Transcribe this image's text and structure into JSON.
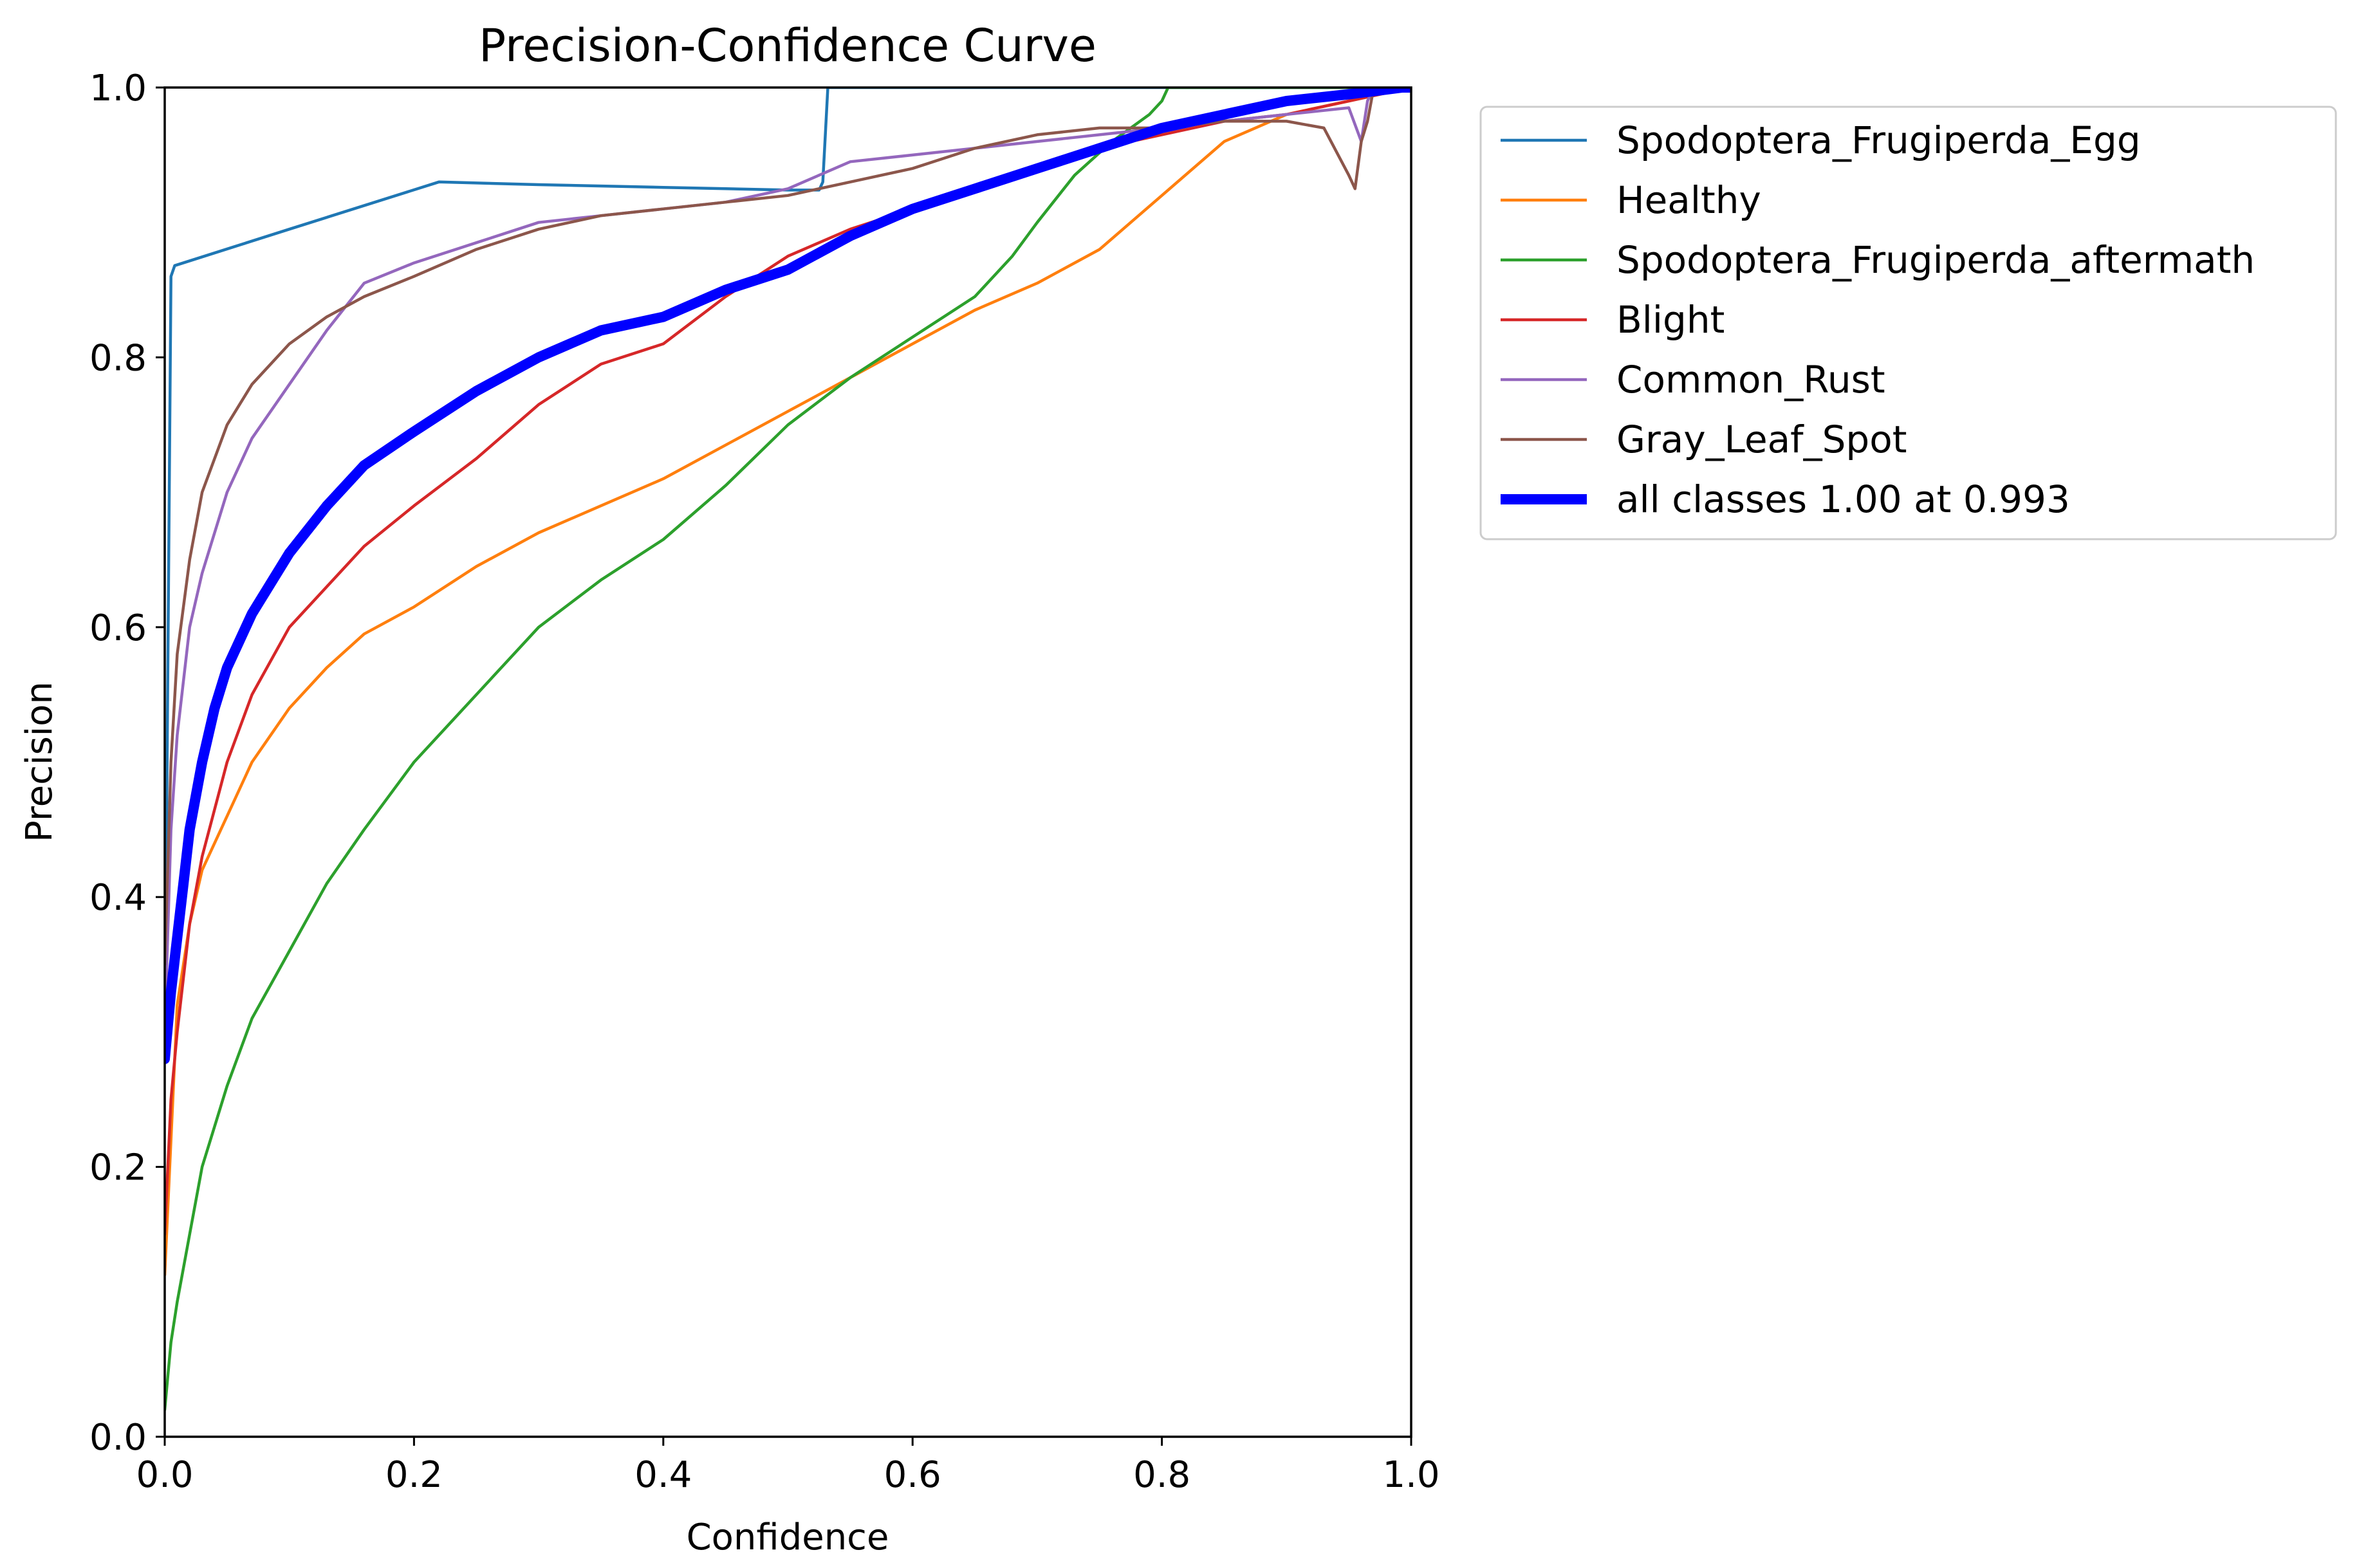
{
  "chart_data": {
    "type": "line",
    "title": "Precision-Confidence Curve",
    "xlabel": "Confidence",
    "ylabel": "Precision",
    "xlim": [
      0.0,
      1.0
    ],
    "ylim": [
      0.0,
      1.0
    ],
    "xticks": [
      0.0,
      0.2,
      0.4,
      0.6,
      0.8,
      1.0
    ],
    "yticks": [
      0.0,
      0.2,
      0.4,
      0.6,
      0.8,
      1.0
    ],
    "xtick_labels": [
      "0.0",
      "0.2",
      "0.4",
      "0.6",
      "0.8",
      "1.0"
    ],
    "ytick_labels": [
      "0.0",
      "0.2",
      "0.4",
      "0.6",
      "0.8",
      "1.0"
    ],
    "grid": false,
    "legend_position": "outside-top-right",
    "series": [
      {
        "name": "Spodoptera_Frugiperda_Egg",
        "color": "#1f77b4",
        "emphasis": "normal",
        "x": [
          0.0,
          0.005,
          0.008,
          0.1,
          0.22,
          0.3,
          0.4,
          0.45,
          0.5,
          0.525,
          0.528,
          0.532,
          1.0
        ],
        "y": [
          0.28,
          0.86,
          0.868,
          0.895,
          0.93,
          0.928,
          0.926,
          0.925,
          0.924,
          0.924,
          0.93,
          1.0,
          1.0
        ]
      },
      {
        "name": "Healthy",
        "color": "#ff7f0e",
        "emphasis": "normal",
        "x": [
          0.0,
          0.01,
          0.02,
          0.03,
          0.05,
          0.07,
          0.1,
          0.13,
          0.16,
          0.2,
          0.25,
          0.3,
          0.35,
          0.4,
          0.45,
          0.5,
          0.55,
          0.6,
          0.65,
          0.7,
          0.75,
          0.8,
          0.85,
          0.9,
          0.95,
          1.0
        ],
        "y": [
          0.12,
          0.32,
          0.38,
          0.42,
          0.46,
          0.5,
          0.54,
          0.57,
          0.595,
          0.615,
          0.645,
          0.67,
          0.69,
          0.71,
          0.735,
          0.76,
          0.785,
          0.81,
          0.835,
          0.855,
          0.88,
          0.92,
          0.96,
          0.98,
          0.99,
          1.0
        ]
      },
      {
        "name": "Spodoptera_Frugiperda_aftermath",
        "color": "#2ca02c",
        "emphasis": "normal",
        "x": [
          0.0,
          0.005,
          0.01,
          0.02,
          0.03,
          0.05,
          0.07,
          0.1,
          0.13,
          0.16,
          0.2,
          0.25,
          0.3,
          0.35,
          0.4,
          0.45,
          0.5,
          0.55,
          0.6,
          0.65,
          0.68,
          0.7,
          0.73,
          0.76,
          0.79,
          0.8,
          0.805,
          1.0
        ],
        "y": [
          0.02,
          0.07,
          0.1,
          0.15,
          0.2,
          0.26,
          0.31,
          0.36,
          0.41,
          0.45,
          0.5,
          0.55,
          0.6,
          0.635,
          0.665,
          0.705,
          0.75,
          0.785,
          0.815,
          0.845,
          0.875,
          0.9,
          0.935,
          0.96,
          0.98,
          0.99,
          1.0,
          1.0
        ]
      },
      {
        "name": "Blight",
        "color": "#d62728",
        "emphasis": "normal",
        "x": [
          0.0,
          0.005,
          0.01,
          0.02,
          0.03,
          0.05,
          0.07,
          0.1,
          0.13,
          0.16,
          0.2,
          0.25,
          0.3,
          0.35,
          0.4,
          0.45,
          0.5,
          0.55,
          0.6,
          0.65,
          0.7,
          0.75,
          0.8,
          0.85,
          0.9,
          0.95,
          1.0
        ],
        "y": [
          0.15,
          0.25,
          0.3,
          0.38,
          0.43,
          0.5,
          0.55,
          0.6,
          0.63,
          0.66,
          0.69,
          0.725,
          0.765,
          0.795,
          0.81,
          0.845,
          0.875,
          0.895,
          0.91,
          0.925,
          0.94,
          0.955,
          0.965,
          0.975,
          0.98,
          0.99,
          1.0
        ]
      },
      {
        "name": "Common_Rust",
        "color": "#9467bd",
        "emphasis": "normal",
        "x": [
          0.0,
          0.005,
          0.01,
          0.02,
          0.03,
          0.05,
          0.07,
          0.1,
          0.13,
          0.16,
          0.2,
          0.25,
          0.3,
          0.35,
          0.4,
          0.45,
          0.5,
          0.55,
          0.6,
          0.65,
          0.7,
          0.75,
          0.8,
          0.85,
          0.9,
          0.95,
          0.96,
          0.965,
          0.97,
          1.0
        ],
        "y": [
          0.3,
          0.45,
          0.52,
          0.6,
          0.64,
          0.7,
          0.74,
          0.78,
          0.82,
          0.855,
          0.87,
          0.885,
          0.9,
          0.905,
          0.91,
          0.915,
          0.925,
          0.945,
          0.95,
          0.955,
          0.96,
          0.965,
          0.97,
          0.975,
          0.98,
          0.985,
          0.96,
          0.99,
          1.0,
          1.0
        ]
      },
      {
        "name": "Gray_Leaf_Spot",
        "color": "#8c564b",
        "emphasis": "normal",
        "x": [
          0.0,
          0.005,
          0.01,
          0.02,
          0.03,
          0.05,
          0.07,
          0.1,
          0.13,
          0.16,
          0.2,
          0.25,
          0.3,
          0.35,
          0.4,
          0.45,
          0.5,
          0.55,
          0.6,
          0.65,
          0.7,
          0.75,
          0.8,
          0.85,
          0.9,
          0.93,
          0.95,
          0.955,
          0.96,
          0.965,
          0.97,
          1.0
        ],
        "y": [
          0.35,
          0.5,
          0.58,
          0.65,
          0.7,
          0.75,
          0.78,
          0.81,
          0.83,
          0.845,
          0.86,
          0.88,
          0.895,
          0.905,
          0.91,
          0.915,
          0.92,
          0.93,
          0.94,
          0.955,
          0.965,
          0.97,
          0.97,
          0.975,
          0.975,
          0.97,
          0.935,
          0.925,
          0.96,
          0.975,
          1.0,
          1.0
        ]
      },
      {
        "name": "all classes 1.00 at 0.993",
        "color": "#0000ff",
        "emphasis": "bold",
        "x": [
          0.0,
          0.005,
          0.01,
          0.015,
          0.02,
          0.03,
          0.04,
          0.05,
          0.07,
          0.1,
          0.13,
          0.16,
          0.2,
          0.25,
          0.3,
          0.35,
          0.4,
          0.45,
          0.5,
          0.55,
          0.6,
          0.65,
          0.7,
          0.75,
          0.8,
          0.85,
          0.9,
          0.95,
          0.993,
          1.0
        ],
        "y": [
          0.28,
          0.33,
          0.37,
          0.41,
          0.45,
          0.5,
          0.54,
          0.57,
          0.61,
          0.655,
          0.69,
          0.72,
          0.745,
          0.775,
          0.8,
          0.82,
          0.83,
          0.85,
          0.865,
          0.89,
          0.91,
          0.925,
          0.94,
          0.955,
          0.97,
          0.98,
          0.99,
          0.995,
          1.0,
          1.0
        ]
      }
    ]
  }
}
